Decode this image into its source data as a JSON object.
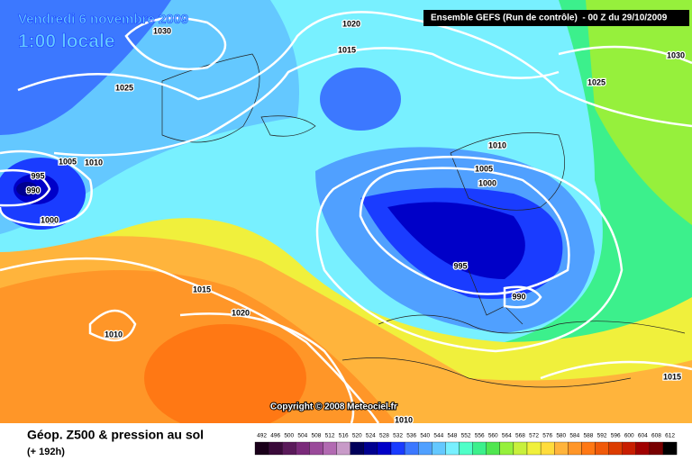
{
  "header": {
    "date": "Vendredi 6 novembre 2009",
    "time": "1:00 locale",
    "run": "Ensemble GEFS (Run de contrôle)  - 00 Z du 29/10/2009"
  },
  "copyright": "Copyright © 2008 Meteociel.fr",
  "isobar_labels": [
    "1030",
    "1020",
    "1015",
    "1030",
    "1025",
    "1025",
    "1005",
    "1010",
    "995",
    "990",
    "1000",
    "1010",
    "1005",
    "1000",
    "995",
    "990",
    "1015",
    "1020",
    "1010",
    "1015",
    "1010"
  ],
  "footer": {
    "title": "Géop. Z500 & pression au sol",
    "subtitle": "(+ 192h)"
  },
  "legend": {
    "values": [
      492,
      496,
      500,
      504,
      508,
      512,
      516,
      520,
      524,
      528,
      532,
      536,
      540,
      544,
      548,
      552,
      556,
      560,
      564,
      568,
      572,
      576,
      580,
      584,
      588,
      592,
      596,
      600,
      604,
      608,
      612
    ],
    "colors": [
      "#1a001a",
      "#3a0a3a",
      "#5a1a5a",
      "#7a2a7a",
      "#9a4a9a",
      "#b26ab2",
      "#c89ac8",
      "#00005a",
      "#000090",
      "#0000c8",
      "#1a3cff",
      "#3c78ff",
      "#50a0ff",
      "#64c8ff",
      "#78f0ff",
      "#50ffc8",
      "#3cf08c",
      "#50e650",
      "#96f03c",
      "#c8f03c",
      "#f0f03c",
      "#ffdc3c",
      "#ffb43c",
      "#ff9628",
      "#ff7814",
      "#f05a0a",
      "#dc3c00",
      "#c81e00",
      "#a00000",
      "#780000",
      "#000000"
    ]
  }
}
